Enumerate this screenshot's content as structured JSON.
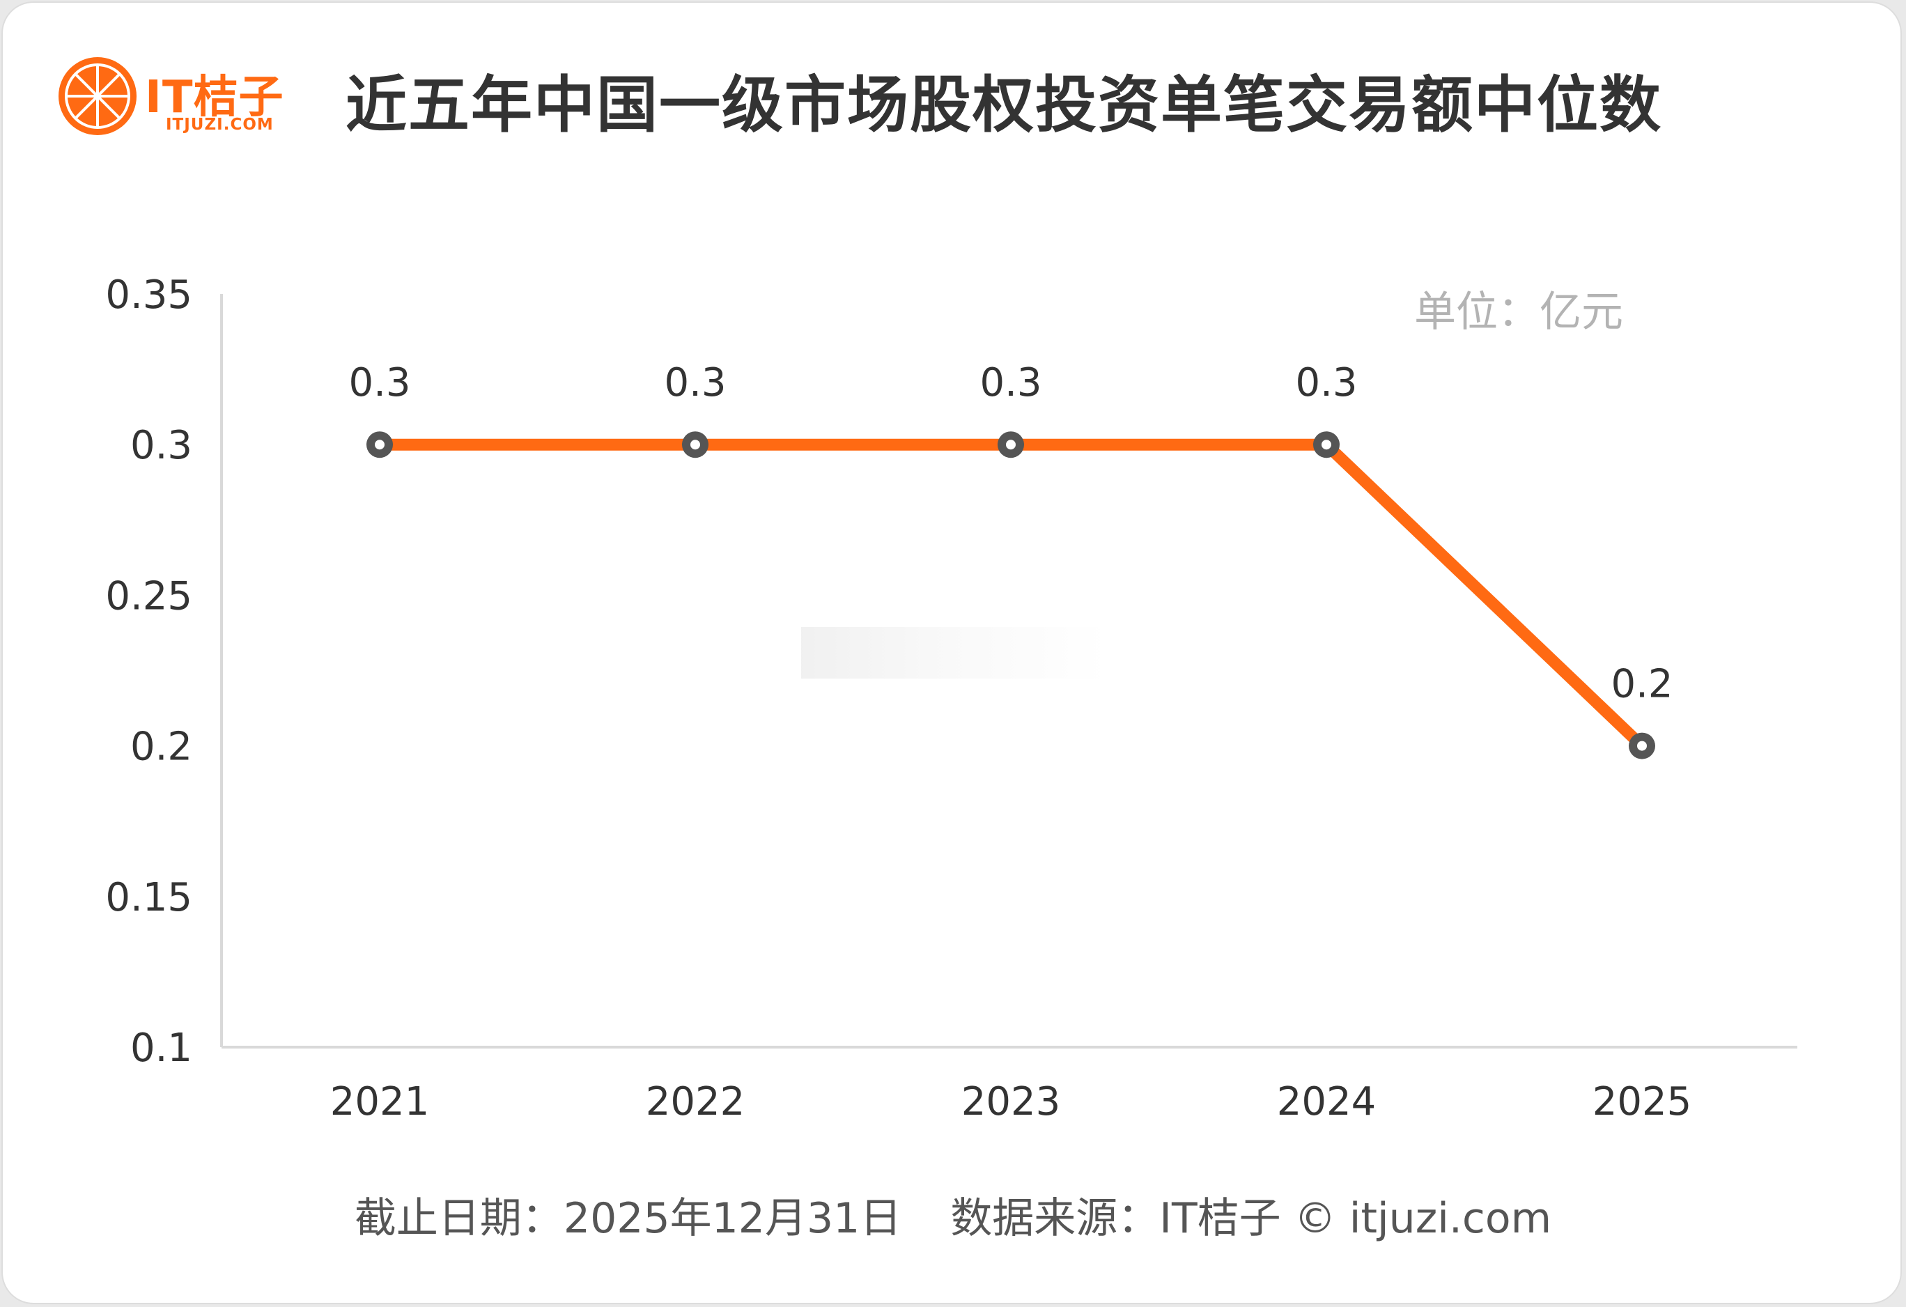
{
  "brand": {
    "name": "IT桔子",
    "domain": "ITJUZI.COM",
    "color": "#ff6a13"
  },
  "title": "近五年中国一级市场股权投资单笔交易额中位数",
  "footer": {
    "date_label": "截止日期：2025年12月31日",
    "source_label": "数据来源：IT桔子 © itjuzi.com"
  },
  "chart_data": {
    "type": "line",
    "title": "近五年中国一级市场股权投资单笔交易额中位数",
    "unit_label": "单位：亿元",
    "categories": [
      "2021",
      "2022",
      "2023",
      "2024",
      "2025"
    ],
    "series": [
      {
        "values": [
          0.3,
          0.3,
          0.3,
          0.3,
          0.2
        ],
        "data_labels": [
          "0.3",
          "0.3",
          "0.3",
          "0.3",
          "0.2"
        ]
      }
    ],
    "ylim": [
      0.1,
      0.35
    ],
    "yticks": [
      0.1,
      0.15,
      0.2,
      0.25,
      0.3,
      0.35
    ],
    "ytick_labels": [
      "0.1",
      "0.15",
      "0.2",
      "0.25",
      "0.3",
      "0.35"
    ],
    "grid": false,
    "line_color": "#ff6a13",
    "marker_color": "#555555"
  }
}
